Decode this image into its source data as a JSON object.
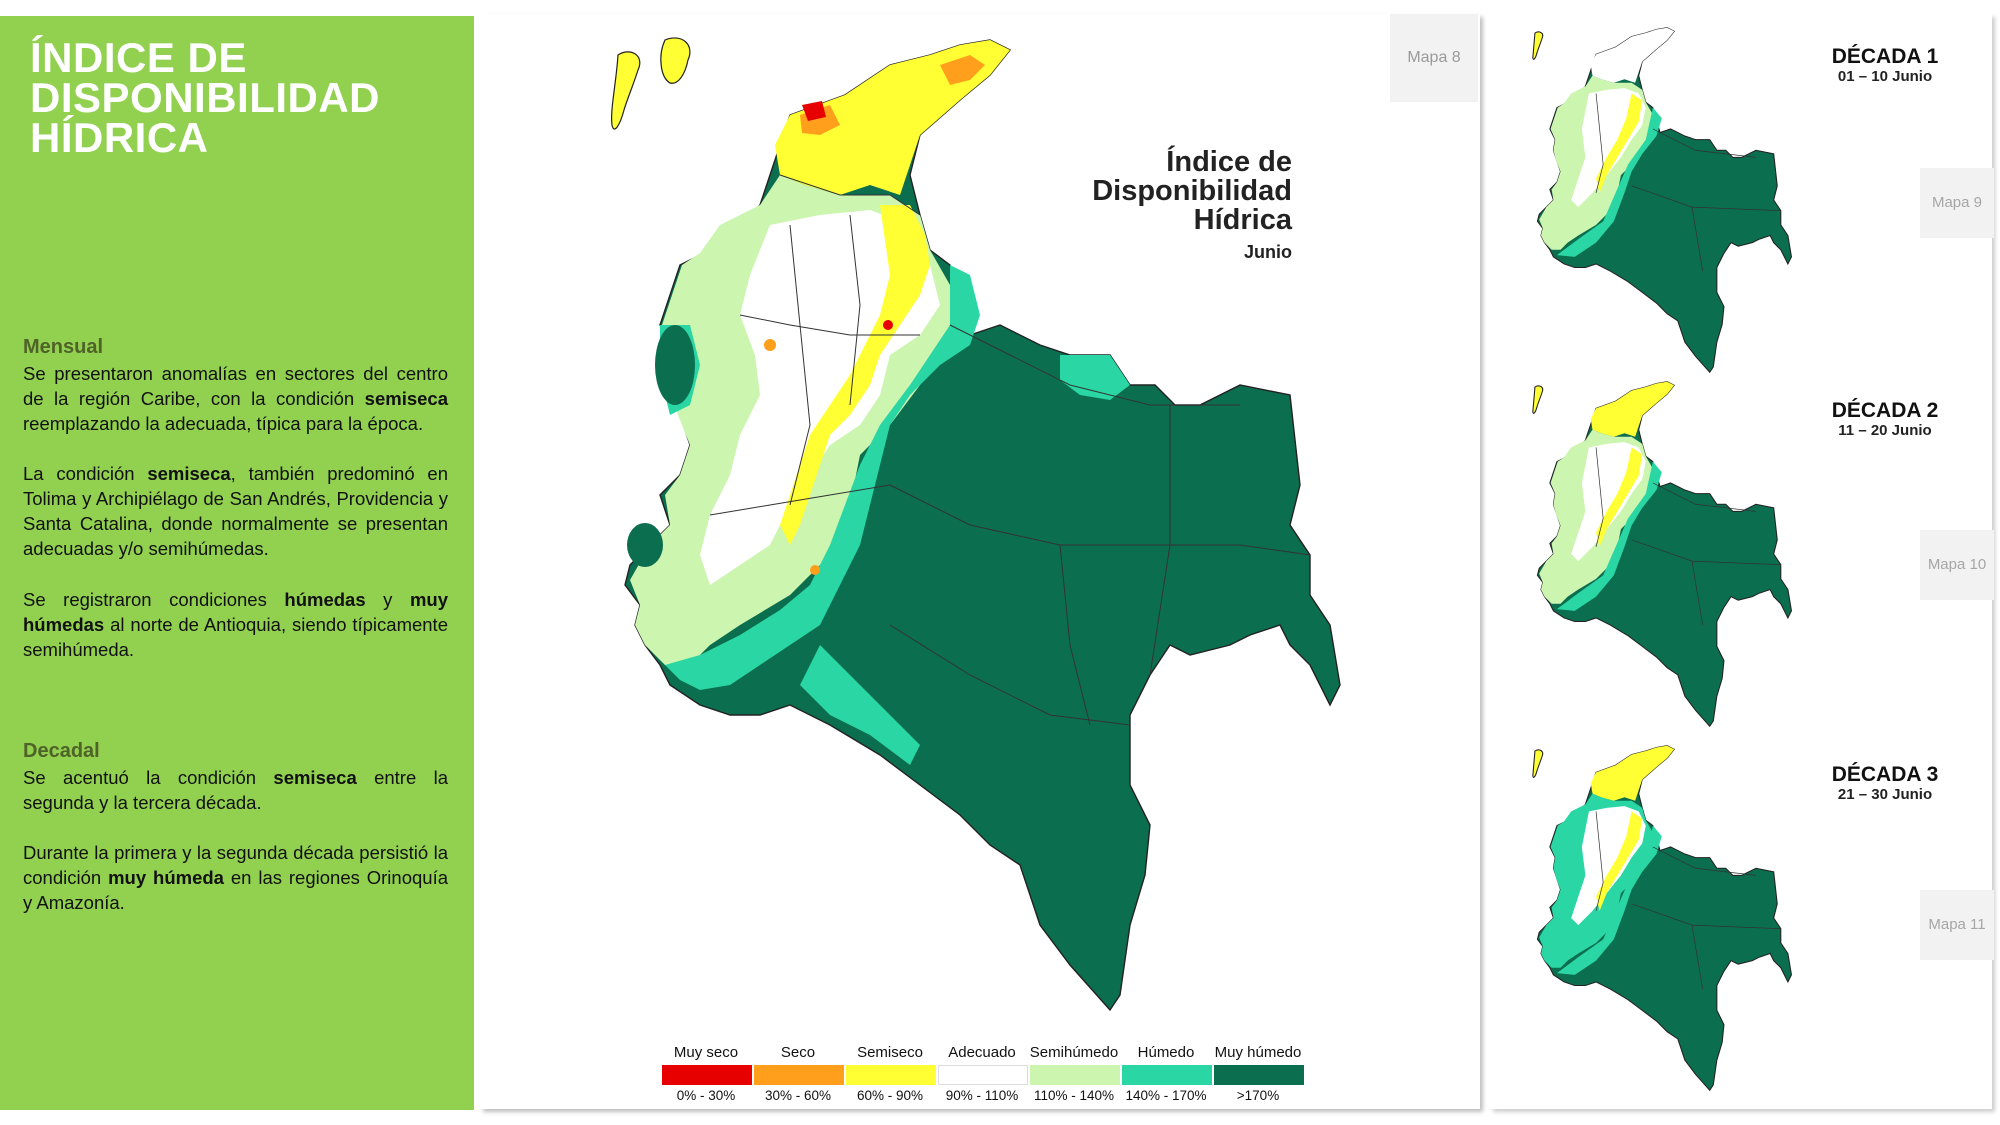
{
  "panel": {
    "title_lines": [
      "ÍNDICE DE",
      "DISPONIBILIDAD",
      "HÍDRICA"
    ],
    "mensual_heading": "Mensual",
    "mensual_p1": [
      {
        "t": "Se presentaron anomalías en sectores del centro de la región Caribe, con la condición "
      },
      {
        "b": "semiseca"
      },
      {
        "t": " reemplazando la adecuada, típica para la época."
      }
    ],
    "mensual_p2": [
      {
        "t": "La condición "
      },
      {
        "b": "semiseca"
      },
      {
        "t": ", también predominó en Tolima y Archipiélago de San Andrés, Providencia y Santa Catalina, donde normalmente se presentan adecuadas y/o semihúmedas."
      }
    ],
    "mensual_p3": [
      {
        "t": "Se registraron condiciones "
      },
      {
        "b": "húmedas"
      },
      {
        "t": " y "
      },
      {
        "b": "muy húmedas"
      },
      {
        "t": " al norte de Antioquia, siendo típicamente semihúmeda."
      }
    ],
    "decadal_heading": "Decadal",
    "decadal_p1": [
      {
        "t": "Se acentuó la condición "
      },
      {
        "b": "semiseca"
      },
      {
        "t": " entre la segunda y la tercera década."
      }
    ],
    "decadal_p2": [
      {
        "t": "Durante la primera y la segunda década persistió la condición "
      },
      {
        "b": "muy húmeda"
      },
      {
        "t": " en las regiones Orinoquía y Amazonía."
      }
    ]
  },
  "main_map": {
    "tab": "Mapa 8",
    "title_lines": [
      "Índice de",
      "Disponibilidad",
      "Hídrica"
    ],
    "subtitle": "Junio"
  },
  "decades": [
    {
      "title": "DÉCADA 1",
      "dates": "01 – 10 Junio",
      "tab": "Mapa 9"
    },
    {
      "title": "DÉCADA 2",
      "dates": "11 – 20 Junio",
      "tab": "Mapa 10"
    },
    {
      "title": "DÉCADA 3",
      "dates": "21 – 30 Junio",
      "tab": "Mapa 11"
    }
  ],
  "legend": [
    {
      "label": "Muy seco",
      "range": "0% - 30%",
      "color": "#e60000"
    },
    {
      "label": "Seco",
      "range": "30% - 60%",
      "color": "#ff9f1c"
    },
    {
      "label": "Semiseco",
      "range": "60% - 90%",
      "color": "#ffff33"
    },
    {
      "label": "Adecuado",
      "range": "90% - 110%",
      "color": "#ffffff"
    },
    {
      "label": "Semihúmedo",
      "range": "110% - 140%",
      "color": "#ccf5b0"
    },
    {
      "label": "Húmedo",
      "range": "140% - 170%",
      "color": "#29d6a4"
    },
    {
      "label": "Muy húmedo",
      "range": ">170%",
      "color": "#0b6e4f"
    }
  ]
}
